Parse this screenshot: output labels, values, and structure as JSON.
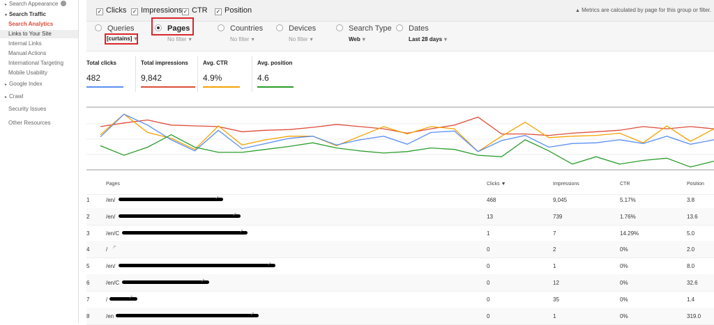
{
  "sidebar": {
    "items": [
      {
        "label": "Search Appearance",
        "kind": "group"
      },
      {
        "label": "Search Traffic",
        "kind": "group-open"
      },
      {
        "label": "Search Analytics",
        "kind": "active"
      },
      {
        "label": "Links to Your Site",
        "kind": "hover"
      },
      {
        "label": "Internal Links",
        "kind": "sub"
      },
      {
        "label": "Manual Actions",
        "kind": "sub"
      },
      {
        "label": "International Targeting",
        "kind": "sub"
      },
      {
        "label": "Mobile Usability",
        "kind": "sub"
      },
      {
        "label": "Google Index",
        "kind": "group"
      },
      {
        "label": "Crawl",
        "kind": "group"
      },
      {
        "label": "Security Issues",
        "kind": "plain"
      },
      {
        "label": "Other Resources",
        "kind": "plain"
      }
    ]
  },
  "toolbar": {
    "checkboxes": [
      "Clicks",
      "Impressions",
      "CTR",
      "Position"
    ],
    "note": "Metrics are calculated by page for this group or filter."
  },
  "groupings": [
    {
      "label": "Queries",
      "filter": "[curtains]"
    },
    {
      "label": "Pages",
      "filter": "No filter"
    },
    {
      "label": "Countries",
      "filter": "No filter"
    },
    {
      "label": "Devices",
      "filter": "No filter"
    },
    {
      "label": "Search Type",
      "filter": "Web"
    },
    {
      "label": "Dates",
      "filter": "Last 28 days"
    }
  ],
  "metrics": [
    {
      "label": "Total clicks",
      "value": "482"
    },
    {
      "label": "Total impressions",
      "value": "9,842"
    },
    {
      "label": "Avg. CTR",
      "value": "4.9%"
    },
    {
      "label": "Avg. position",
      "value": "4.6"
    }
  ],
  "chart_data": {
    "type": "line",
    "series": [
      {
        "name": "Total impressions",
        "color": "#dd4b39",
        "values": [
          63,
          68,
          72,
          65,
          64,
          63,
          56,
          58,
          59,
          62,
          66,
          63,
          60,
          54,
          60,
          65,
          76,
          53,
          53,
          51,
          54,
          56,
          58,
          63,
          60,
          63,
          60
        ]
      },
      {
        "name": "Avg. CTR",
        "color": "#f4a300",
        "values": [
          52,
          80,
          55,
          47,
          32,
          64,
          38,
          45,
          50,
          50,
          37,
          50,
          63,
          53,
          63,
          60,
          29,
          50,
          69,
          48,
          50,
          51,
          54,
          41,
          64,
          43,
          60
        ]
      },
      {
        "name": "Total clicks",
        "color": "#5b8ff0",
        "values": [
          49,
          80,
          65,
          45,
          30,
          58,
          33,
          40,
          47,
          50,
          38,
          45,
          50,
          39,
          55,
          57,
          29,
          44,
          51,
          35,
          40,
          41,
          45,
          40,
          50,
          39,
          45
        ]
      },
      {
        "name": "Avg. position",
        "color": "#2a9d2a",
        "values": [
          37,
          24,
          35,
          52,
          35,
          28,
          28,
          32,
          36,
          41,
          34,
          30,
          27,
          29,
          34,
          32,
          24,
          22,
          45,
          30,
          12,
          22,
          12,
          17,
          20,
          8,
          16
        ]
      }
    ]
  },
  "table": {
    "headers": [
      "Pages",
      "Clicks ▼",
      "Impressions",
      "CTR",
      "Position"
    ],
    "rows": [
      [
        "1",
        "/en/",
        "468",
        "9,045",
        "5.17%",
        "3.8"
      ],
      [
        "2",
        "/en/",
        "13",
        "739",
        "1.76%",
        "13.6"
      ],
      [
        "3",
        "/en/C",
        "1",
        "7",
        "14.29%",
        "5.0"
      ],
      [
        "4",
        "/",
        "0",
        "2",
        "0%",
        "2.0"
      ],
      [
        "5",
        "/en/",
        "0",
        "1",
        "0%",
        "8.0"
      ],
      [
        "6",
        "/en/C",
        "0",
        "12",
        "0%",
        "32.6"
      ],
      [
        "7",
        "/",
        "0",
        "35",
        "0%",
        "1.4"
      ],
      [
        "8",
        "/en",
        "0",
        "1",
        "0%",
        "319.0"
      ]
    ]
  }
}
